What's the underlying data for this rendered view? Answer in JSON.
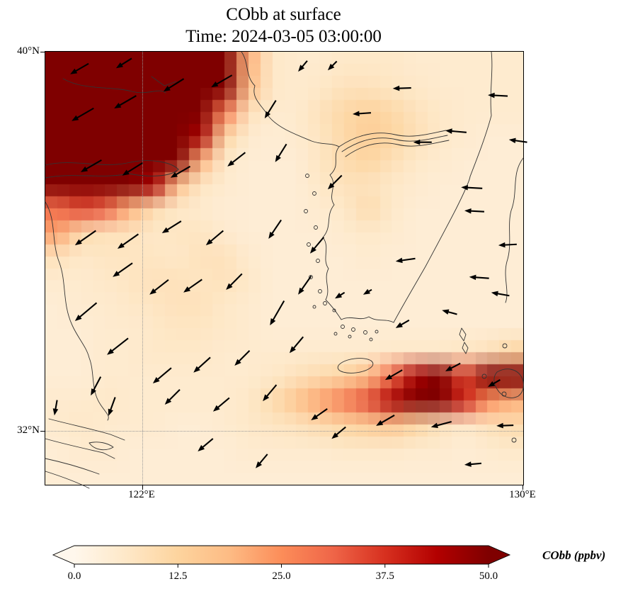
{
  "figure": {
    "title": "CObb at surface",
    "subtitle": "Time: 2024-03-05 03:00:00"
  },
  "axes": {
    "lat_ticks": [
      {
        "label": "40°N",
        "pos_pct": 0
      },
      {
        "label": "32°N",
        "pos_pct": 87.6
      }
    ],
    "lon_ticks": [
      {
        "label": "122°E",
        "pos_pct": 20.3
      },
      {
        "label": "130°E",
        "pos_pct": 100
      }
    ],
    "gridline_color": "#999999"
  },
  "colorbar": {
    "label": "CObb (ppbv)",
    "min": 0,
    "max": 50,
    "under_color": "#fff7ec",
    "over_color": "#7f0000",
    "ticks": [
      {
        "label": "0.0",
        "value": 0
      },
      {
        "label": "12.5",
        "value": 12.5
      },
      {
        "label": "25.0",
        "value": 25
      },
      {
        "label": "37.5",
        "value": 37.5
      },
      {
        "label": "50.0",
        "value": 50
      }
    ],
    "stops": [
      [
        0,
        "#fff7ec"
      ],
      [
        6.25,
        "#fee8c8"
      ],
      [
        12.5,
        "#fdd49e"
      ],
      [
        18.75,
        "#fdbb84"
      ],
      [
        25,
        "#fc8d59"
      ],
      [
        31.25,
        "#ef6548"
      ],
      [
        37.5,
        "#d7301f"
      ],
      [
        43.75,
        "#b30000"
      ],
      [
        50,
        "#7f0000"
      ]
    ]
  },
  "chart_data": {
    "type": "heatmap",
    "title": "CObb at surface",
    "time": "2024-03-05 03:00:00",
    "variable": "CObb",
    "units": "ppbv",
    "colormap": "OrRd",
    "clim": [
      0,
      50
    ],
    "extent": {
      "lon_min": 120,
      "lon_max": 130,
      "lat_min": 30.9,
      "lat_max": 40
    },
    "grid_rows": 18,
    "grid_cols": 20,
    "grid": [
      [
        60,
        60,
        60,
        60,
        60,
        60,
        58,
        52,
        20,
        6,
        5,
        5,
        6,
        6,
        6,
        5,
        5,
        5,
        5,
        5
      ],
      [
        60,
        60,
        60,
        60,
        60,
        60,
        58,
        50,
        18,
        6,
        5,
        6,
        8,
        8,
        7,
        6,
        5,
        5,
        5,
        5
      ],
      [
        60,
        60,
        60,
        60,
        60,
        60,
        55,
        28,
        8,
        5,
        5,
        8,
        11,
        13,
        11,
        8,
        6,
        5,
        5,
        5
      ],
      [
        60,
        60,
        60,
        60,
        60,
        58,
        45,
        12,
        5,
        4,
        5,
        7,
        11,
        14,
        12,
        9,
        6,
        5,
        4,
        4
      ],
      [
        58,
        60,
        60,
        60,
        58,
        50,
        20,
        6,
        4,
        4,
        4,
        7,
        10,
        12,
        9,
        6,
        5,
        4,
        4,
        4
      ],
      [
        55,
        58,
        58,
        55,
        45,
        18,
        7,
        5,
        4,
        4,
        4,
        6,
        8,
        8,
        6,
        5,
        4,
        4,
        4,
        4
      ],
      [
        30,
        35,
        32,
        20,
        10,
        6,
        5,
        4,
        4,
        4,
        4,
        5,
        6,
        10,
        6,
        4,
        4,
        4,
        4,
        4
      ],
      [
        22,
        10,
        8,
        8,
        6,
        7,
        7,
        5,
        4,
        4,
        4,
        4,
        5,
        6,
        5,
        4,
        4,
        4,
        4,
        4
      ],
      [
        8,
        6,
        7,
        7,
        7,
        6,
        8,
        8,
        5,
        4,
        4,
        4,
        4,
        5,
        4,
        4,
        4,
        4,
        4,
        4
      ],
      [
        5,
        5,
        6,
        7,
        8,
        8,
        7,
        8,
        6,
        4,
        4,
        4,
        4,
        4,
        4,
        4,
        4,
        4,
        4,
        4
      ],
      [
        4,
        5,
        5,
        6,
        7,
        8,
        8,
        6,
        5,
        4,
        4,
        4,
        4,
        4,
        4,
        4,
        4,
        4,
        4,
        4
      ],
      [
        4,
        4,
        5,
        5,
        6,
        7,
        7,
        6,
        5,
        4,
        4,
        4,
        4,
        4,
        4,
        4,
        4,
        4,
        4,
        4
      ],
      [
        4,
        4,
        5,
        5,
        6,
        6,
        6,
        5,
        5,
        5,
        5,
        5,
        5,
        5,
        6,
        6,
        6,
        7,
        8,
        12
      ],
      [
        4,
        4,
        5,
        5,
        5,
        5,
        5,
        5,
        5,
        6,
        8,
        10,
        12,
        18,
        30,
        45,
        55,
        35,
        50,
        60
      ],
      [
        5,
        5,
        6,
        5,
        5,
        5,
        5,
        5,
        6,
        10,
        16,
        22,
        28,
        34,
        45,
        55,
        50,
        40,
        25,
        20
      ],
      [
        5,
        6,
        5,
        5,
        5,
        4,
        4,
        5,
        6,
        7,
        8,
        10,
        12,
        14,
        16,
        12,
        8,
        6,
        8,
        10
      ],
      [
        4,
        5,
        5,
        4,
        4,
        4,
        4,
        4,
        5,
        5,
        5,
        5,
        6,
        6,
        6,
        5,
        5,
        4,
        5,
        6
      ],
      [
        4,
        4,
        4,
        4,
        4,
        4,
        4,
        4,
        4,
        4,
        4,
        4,
        4,
        4,
        4,
        4,
        4,
        4,
        4,
        4
      ]
    ],
    "wind_arrows": [
      {
        "x": 5.5,
        "y": 16.0,
        "a": 150,
        "l": 36
      },
      {
        "x": 14.4,
        "y": 13.1,
        "a": 150,
        "l": 36
      },
      {
        "x": 24.7,
        "y": 9.2,
        "a": 148,
        "l": 34
      },
      {
        "x": 34.7,
        "y": 8.2,
        "a": 150,
        "l": 34
      },
      {
        "x": 45.9,
        "y": 15.4,
        "a": 122,
        "l": 30
      },
      {
        "x": 52.9,
        "y": 4.6,
        "a": 130,
        "l": 20
      },
      {
        "x": 59.1,
        "y": 4.3,
        "a": 135,
        "l": 18
      },
      {
        "x": 64.3,
        "y": 14.4,
        "a": 176,
        "l": 26
      },
      {
        "x": 72.7,
        "y": 8.5,
        "a": 178,
        "l": 26
      },
      {
        "x": 83.7,
        "y": 18.2,
        "a": 185,
        "l": 30
      },
      {
        "x": 92.6,
        "y": 10.0,
        "a": 183,
        "l": 28
      },
      {
        "x": 97.0,
        "y": 20.3,
        "a": 188,
        "l": 26
      },
      {
        "x": 7.4,
        "y": 27.8,
        "a": 150,
        "l": 34
      },
      {
        "x": 16.1,
        "y": 28.6,
        "a": 148,
        "l": 34
      },
      {
        "x": 26.2,
        "y": 29.1,
        "a": 150,
        "l": 32
      },
      {
        "x": 38.1,
        "y": 26.5,
        "a": 142,
        "l": 32
      },
      {
        "x": 48.1,
        "y": 25.5,
        "a": 122,
        "l": 30
      },
      {
        "x": 59.1,
        "y": 31.8,
        "a": 135,
        "l": 28
      },
      {
        "x": 77.0,
        "y": 20.9,
        "a": 180,
        "l": 26
      },
      {
        "x": 87.0,
        "y": 31.3,
        "a": 183,
        "l": 30
      },
      {
        "x": 6.2,
        "y": 44.7,
        "a": 145,
        "l": 36
      },
      {
        "x": 15.1,
        "y": 45.5,
        "a": 145,
        "l": 36
      },
      {
        "x": 24.4,
        "y": 41.9,
        "a": 148,
        "l": 32
      },
      {
        "x": 33.6,
        "y": 44.7,
        "a": 140,
        "l": 32
      },
      {
        "x": 46.7,
        "y": 43.2,
        "a": 124,
        "l": 32
      },
      {
        "x": 55.4,
        "y": 46.6,
        "a": 130,
        "l": 30
      },
      {
        "x": 73.3,
        "y": 48.4,
        "a": 172,
        "l": 28
      },
      {
        "x": 87.7,
        "y": 36.7,
        "a": 183,
        "l": 28
      },
      {
        "x": 94.8,
        "y": 44.7,
        "a": 177,
        "l": 26
      },
      {
        "x": 6.2,
        "y": 62.2,
        "a": 140,
        "l": 40
      },
      {
        "x": 14.1,
        "y": 52.0,
        "a": 145,
        "l": 34
      },
      {
        "x": 21.8,
        "y": 56.1,
        "a": 142,
        "l": 34
      },
      {
        "x": 28.9,
        "y": 55.6,
        "a": 145,
        "l": 32
      },
      {
        "x": 37.8,
        "y": 55.0,
        "a": 135,
        "l": 32
      },
      {
        "x": 47.0,
        "y": 63.2,
        "a": 120,
        "l": 40
      },
      {
        "x": 52.9,
        "y": 56.1,
        "a": 125,
        "l": 32
      },
      {
        "x": 60.6,
        "y": 57.0,
        "a": 148,
        "l": 16
      },
      {
        "x": 66.5,
        "y": 56.1,
        "a": 150,
        "l": 14
      },
      {
        "x": 73.3,
        "y": 63.8,
        "a": 150,
        "l": 22
      },
      {
        "x": 83.0,
        "y": 59.7,
        "a": 195,
        "l": 22
      },
      {
        "x": 88.7,
        "y": 52.0,
        "a": 184,
        "l": 28
      },
      {
        "x": 93.3,
        "y": 55.6,
        "a": 190,
        "l": 26
      },
      {
        "x": 12.9,
        "y": 70.0,
        "a": 142,
        "l": 38
      },
      {
        "x": 22.5,
        "y": 76.6,
        "a": 140,
        "l": 34
      },
      {
        "x": 31.0,
        "y": 74.1,
        "a": 138,
        "l": 32
      },
      {
        "x": 39.6,
        "y": 72.5,
        "a": 135,
        "l": 30
      },
      {
        "x": 51.1,
        "y": 69.6,
        "a": 130,
        "l": 30
      },
      {
        "x": 71.1,
        "y": 75.8,
        "a": 150,
        "l": 28
      },
      {
        "x": 83.7,
        "y": 73.8,
        "a": 152,
        "l": 24
      },
      {
        "x": 92.6,
        "y": 77.4,
        "a": 150,
        "l": 20
      },
      {
        "x": 1.9,
        "y": 84.0,
        "a": 100,
        "l": 22
      },
      {
        "x": 9.5,
        "y": 79.4,
        "a": 118,
        "l": 30
      },
      {
        "x": 13.2,
        "y": 84.1,
        "a": 110,
        "l": 28
      },
      {
        "x": 25.0,
        "y": 81.5,
        "a": 135,
        "l": 30
      },
      {
        "x": 35.1,
        "y": 83.1,
        "a": 140,
        "l": 30
      },
      {
        "x": 45.5,
        "y": 80.7,
        "a": 130,
        "l": 30
      },
      {
        "x": 55.6,
        "y": 85.1,
        "a": 145,
        "l": 28
      },
      {
        "x": 59.9,
        "y": 89.4,
        "a": 140,
        "l": 26
      },
      {
        "x": 69.2,
        "y": 86.4,
        "a": 150,
        "l": 30
      },
      {
        "x": 80.7,
        "y": 86.7,
        "a": 165,
        "l": 30
      },
      {
        "x": 87.7,
        "y": 95.4,
        "a": 175,
        "l": 24
      },
      {
        "x": 94.4,
        "y": 86.4,
        "a": 178,
        "l": 24
      },
      {
        "x": 31.9,
        "y": 92.3,
        "a": 140,
        "l": 28
      },
      {
        "x": 44.0,
        "y": 96.2,
        "a": 130,
        "l": 26
      },
      {
        "x": 5.2,
        "y": 5.2,
        "a": 150,
        "l": 30
      },
      {
        "x": 14.8,
        "y": 3.8,
        "a": 148,
        "l": 26
      }
    ]
  }
}
